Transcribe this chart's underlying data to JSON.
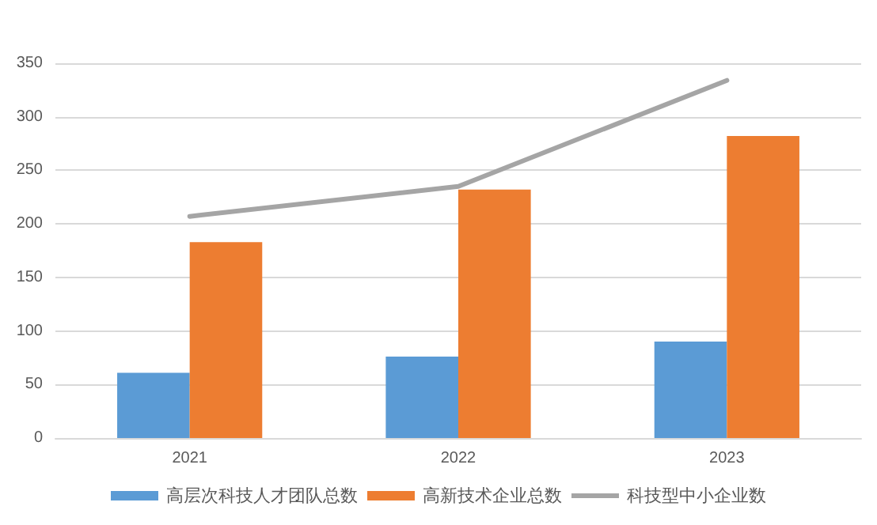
{
  "chart_data": {
    "type": "bar",
    "categories": [
      "2021",
      "2022",
      "2023"
    ],
    "series": [
      {
        "name": "高层次科技人才团队总数",
        "color": "#5b9bd5",
        "values": [
          61,
          76,
          90
        ]
      },
      {
        "name": "高新技术企业总数",
        "color": "#ed7d31",
        "values": [
          183,
          232,
          282
        ]
      },
      {
        "name": "科技型中小企业数",
        "type": "line",
        "color": "#a5a5a5",
        "values": [
          207,
          235,
          334
        ]
      }
    ],
    "ylim": [
      0,
      350
    ],
    "yticks": [
      0,
      50,
      100,
      150,
      200,
      250,
      300,
      350
    ],
    "grid": "y",
    "legend": "bottom",
    "marker": "none"
  }
}
